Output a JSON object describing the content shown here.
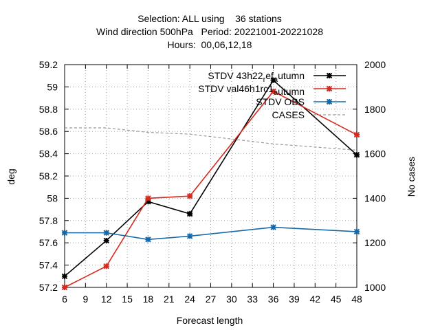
{
  "chart_data": {
    "type": "line",
    "title_lines": [
      "Selection: ALL using    36 stations",
      "Wind direction 500hPa   Period: 20221001-20221028",
      "Hours:  00,06,12,18"
    ],
    "xlabel": "Forecast length",
    "ylabel": "deg",
    "y2label": "No cases",
    "xlim": [
      6,
      48
    ],
    "ylim": [
      57.2,
      59.2
    ],
    "y2lim": [
      1000,
      2000
    ],
    "xticks": [
      6,
      9,
      12,
      15,
      18,
      21,
      24,
      27,
      30,
      33,
      36,
      39,
      42,
      45,
      48
    ],
    "yticks": [
      57.2,
      57.4,
      57.6,
      57.8,
      58,
      58.2,
      58.4,
      58.6,
      58.8,
      59,
      59.2
    ],
    "ytick_labels": [
      "57.2",
      "57.4",
      "57.6",
      "57.8",
      "58",
      "58.2",
      "58.4",
      "58.6",
      "58.8",
      "59",
      "59.2"
    ],
    "y2ticks": [
      1000,
      1200,
      1400,
      1600,
      1800,
      2000
    ],
    "grid": true,
    "legend_position": "top-right",
    "series": [
      {
        "name": "STDV 43h22_ref_autumn",
        "axis": "y",
        "color": "#000000",
        "marker": "x",
        "dash": "",
        "x": [
          6,
          12,
          18,
          24,
          36,
          48
        ],
        "y": [
          57.3,
          57.62,
          57.97,
          57.86,
          59.06,
          58.39
        ]
      },
      {
        "name": "STDV val46h1rc1_autumn",
        "axis": "y",
        "color": "#d62a1f",
        "marker": "x",
        "dash": "",
        "x": [
          6,
          12,
          18,
          24,
          36,
          48
        ],
        "y": [
          57.2,
          57.39,
          58.0,
          58.02,
          58.96,
          58.57
        ]
      },
      {
        "name": "STDV OBS",
        "axis": "y",
        "color": "#1768a6",
        "marker": "x",
        "dash": "",
        "x": [
          6,
          12,
          18,
          24,
          36,
          48
        ],
        "y": [
          57.69,
          57.69,
          57.63,
          57.66,
          57.74,
          57.7
        ]
      },
      {
        "name": "CASES",
        "axis": "y2",
        "color": "#999999",
        "marker": "",
        "dash": "4,3",
        "x": [
          6,
          12,
          18,
          24,
          36,
          48
        ],
        "y": [
          1716,
          1716,
          1696,
          1688,
          1644,
          1616
        ]
      }
    ],
    "legend_entries": [
      {
        "text": "STDV 43h22",
        "sub": "r",
        "mid": "ef",
        "sub2": "a",
        "tail": "utumn"
      },
      {
        "text": "STDV val46h1rc1",
        "sub": "a",
        "mid": "",
        "sub2": "",
        "tail": "utumn"
      },
      {
        "text": "STDV OBS",
        "sub": "",
        "mid": "",
        "sub2": "",
        "tail": ""
      },
      {
        "text": "CASES",
        "sub": "",
        "mid": "",
        "sub2": "",
        "tail": ""
      }
    ]
  }
}
